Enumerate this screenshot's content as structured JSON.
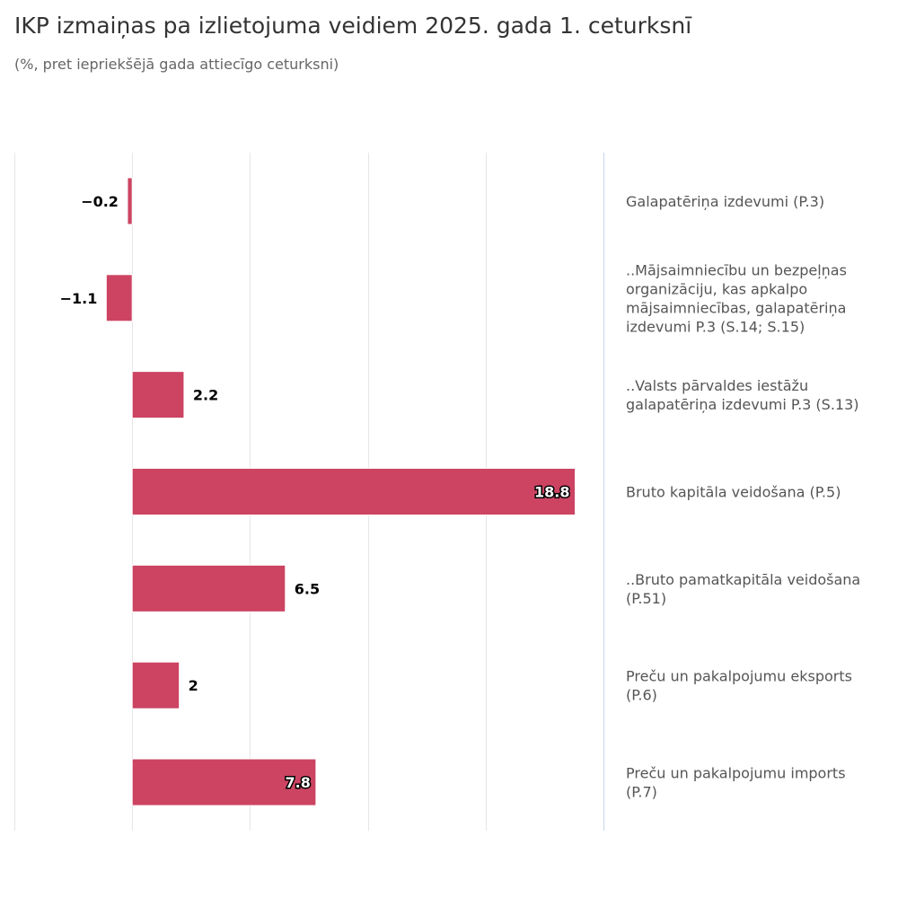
{
  "header": {
    "title": "IKP izmaiņas pa izlietojuma veidiem 2025. gada 1. ceturksnī",
    "subtitle": "(%, pret iepriekšējā gada attiecīgo ceturksni)"
  },
  "colors": {
    "bar": "#cc4462",
    "grid": "#e6e6e6",
    "axis_line": "#ccd6eb"
  },
  "chart_data": {
    "type": "bar",
    "orientation": "horizontal",
    "categories": [
      "Galapatēriņa izdevumi (P.3)",
      "..Mājsaimniecību un bezpeļņas organizāciju, kas apkalpo mājsaimniecības, galapatēriņa izdevumi P.3 (S.14; S.15)",
      "..Valsts pārvaldes iestāžu galapatēriņa izdevumi P.3 (S.13)",
      "Bruto kapitāla veidošana (P.5)",
      "..Bruto pamatkapitāla veidošana (P.51)",
      "Preču un pakalpojumu eksports (P.6)",
      "Preču un pakalpojumu imports (P.7)"
    ],
    "category_lines": [
      [
        "Galapatēriņa izdevumi (P.3)"
      ],
      [
        "..Mājsaimniecību un bezpeļņas",
        "organizāciju, kas apkalpo",
        "mājsaimniecības, galapatēriņa",
        "izdevumi P.3 (S.14; S.15)"
      ],
      [
        "..Valsts pārvaldes iestāžu",
        "galapatēriņa izdevumi P.3 (S.13)"
      ],
      [
        "Bruto kapitāla veidošana (P.5)"
      ],
      [
        "..Bruto pamatkapitāla veidošana",
        "(P.51)"
      ],
      [
        "Preču un pakalpojumu eksports",
        "(P.6)"
      ],
      [
        "Preču un pakalpojumu imports",
        "(P.7)"
      ]
    ],
    "values": [
      -0.2,
      -1.1,
      2.2,
      18.8,
      6.5,
      2,
      7.8
    ],
    "data_labels": [
      "−0.2",
      "−1.1",
      "2.2",
      "18.8",
      "6.5",
      "2",
      "7.8"
    ],
    "xlim": [
      -5,
      20
    ],
    "gridlines": [
      -5,
      0,
      5,
      10,
      15,
      20
    ],
    "axis_labels_position": "right",
    "grid": true,
    "legend": false
  }
}
